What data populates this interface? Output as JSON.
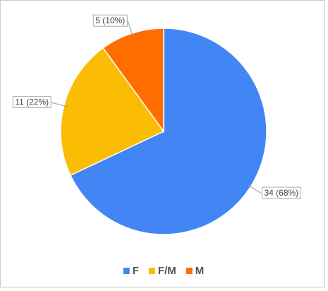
{
  "chart_data": {
    "type": "pie",
    "categories": [
      "F",
      "F/M",
      "M"
    ],
    "values": [
      34,
      11,
      5
    ],
    "value_labels": [
      "34 (68%)",
      "11 (22%)",
      "5 (10%)"
    ],
    "colors": [
      "#4285f4",
      "#fbbc04",
      "#ff6d01"
    ],
    "legend": "bottom"
  }
}
